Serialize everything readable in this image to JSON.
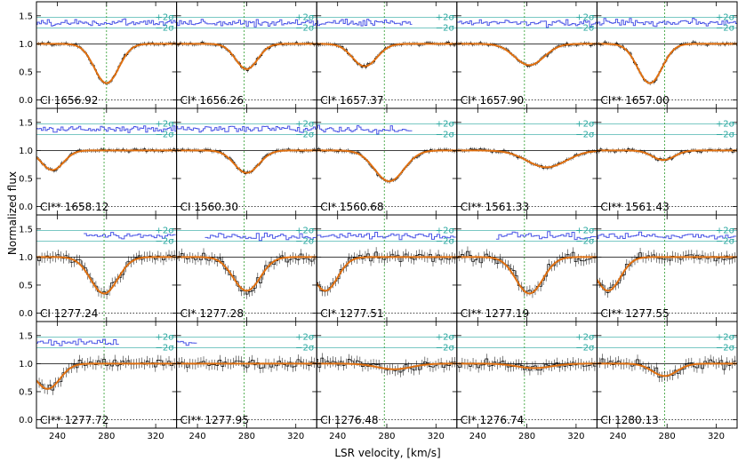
{
  "chart_data": {
    "type": "line",
    "title": "",
    "xlabel": "LSR velocity, [km/s]",
    "ylabel": "Normalized flux",
    "xlim": [
      223,
      337
    ],
    "ylim": [
      -0.15,
      1.75
    ],
    "xticks": [
      240,
      280,
      320
    ],
    "yticks": [
      0.0,
      0.5,
      1.0,
      1.5
    ],
    "ytick_labels": [
      "0.0",
      "0.5",
      "1.0",
      "1.5"
    ],
    "residual_labels": [
      "+2σ",
      "−2σ"
    ],
    "grid": false,
    "legend": "none",
    "colors": {
      "data": "#000000",
      "model": "#e07010",
      "residual": "#4a55e6",
      "sigma": "#2aa8a0",
      "vline": "#2a9a2a",
      "guide": "#000000"
    },
    "panels": [
      {
        "label": "CI 1656.92",
        "center": 280,
        "depth": 0.7,
        "width": 10,
        "vline": 280,
        "resid_start": 223,
        "resid_end": 337
      },
      {
        "label": "CI* 1656.26",
        "center": 280,
        "depth": 0.45,
        "width": 9,
        "vline": 278,
        "resid_start": 223,
        "resid_end": 337
      },
      {
        "label": "CI* 1657.37",
        "center": 262,
        "depth": 0.4,
        "width": 10,
        "vline": 278,
        "resid_start": 223,
        "resid_end": 300
      },
      {
        "label": "CI* 1657.90",
        "center": 282,
        "depth": 0.38,
        "width": 12,
        "vline": 278,
        "resid_start": 223,
        "resid_end": 337
      },
      {
        "label": "CI** 1657.00",
        "center": 266,
        "depth": 0.7,
        "width": 10,
        "vline": 278,
        "resid_start": 223,
        "resid_end": 337
      },
      {
        "label": "CI** 1658.12",
        "center": 236,
        "depth": 0.35,
        "width": 9,
        "vline": 278,
        "resid_start": 223,
        "resid_end": 337
      },
      {
        "label": "CI 1560.30",
        "center": 280,
        "depth": 0.4,
        "width": 10,
        "vline": 278,
        "resid_start": 223,
        "resid_end": 337
      },
      {
        "label": "CI* 1560.68",
        "center": 282,
        "depth": 0.55,
        "width": 12,
        "vline": 278,
        "resid_start": 223,
        "resid_end": 300
      },
      {
        "label": "CI** 1561.33",
        "center": 296,
        "depth": 0.3,
        "width": 16,
        "vline": 278,
        "resid_start": 337,
        "resid_end": 337
      },
      {
        "label": "CI** 1561.43",
        "center": 277,
        "depth": 0.17,
        "width": 9,
        "vline": 278,
        "resid_start": 337,
        "resid_end": 337
      },
      {
        "label": "CI 1277.24",
        "center": 278,
        "depth": 0.65,
        "width": 11,
        "vline": 278,
        "resid_start": 262,
        "resid_end": 337
      },
      {
        "label": "CI* 1277.28",
        "center": 280,
        "depth": 0.6,
        "width": 11,
        "vline": 278,
        "resid_start": 245,
        "resid_end": 337
      },
      {
        "label": "CI* 1277.51",
        "center": 230,
        "depth": 0.6,
        "width": 10,
        "vline": 278,
        "resid_start": 223,
        "resid_end": 337
      },
      {
        "label": "CI** 1277.19",
        "center": 282,
        "depth": 0.65,
        "width": 11,
        "vline": 278,
        "resid_start": 255,
        "resid_end": 337
      },
      {
        "label": "CI** 1277.55",
        "center": 232,
        "depth": 0.6,
        "width": 10,
        "vline": 278,
        "resid_start": 223,
        "resid_end": 337
      },
      {
        "label": "CI** 1277.72",
        "center": 232,
        "depth": 0.45,
        "width": 10,
        "vline": 278,
        "resid_start": 223,
        "resid_end": 290
      },
      {
        "label": "CI** 1277.95",
        "center": 200,
        "depth": 0.0,
        "width": 10,
        "vline": 278,
        "resid_start": 223,
        "resid_end": 240
      },
      {
        "label": "CI 1276.48",
        "center": 286,
        "depth": 0.1,
        "width": 14,
        "vline": 278,
        "resid_start": 337,
        "resid_end": 337
      },
      {
        "label": "CI* 1276.74",
        "center": 286,
        "depth": 0.08,
        "width": 14,
        "vline": 278,
        "resid_start": 337,
        "resid_end": 337
      },
      {
        "label": "CI 1280.13",
        "center": 278,
        "depth": 0.22,
        "width": 10,
        "vline": 278,
        "resid_start": 337,
        "resid_end": 337
      }
    ]
  }
}
